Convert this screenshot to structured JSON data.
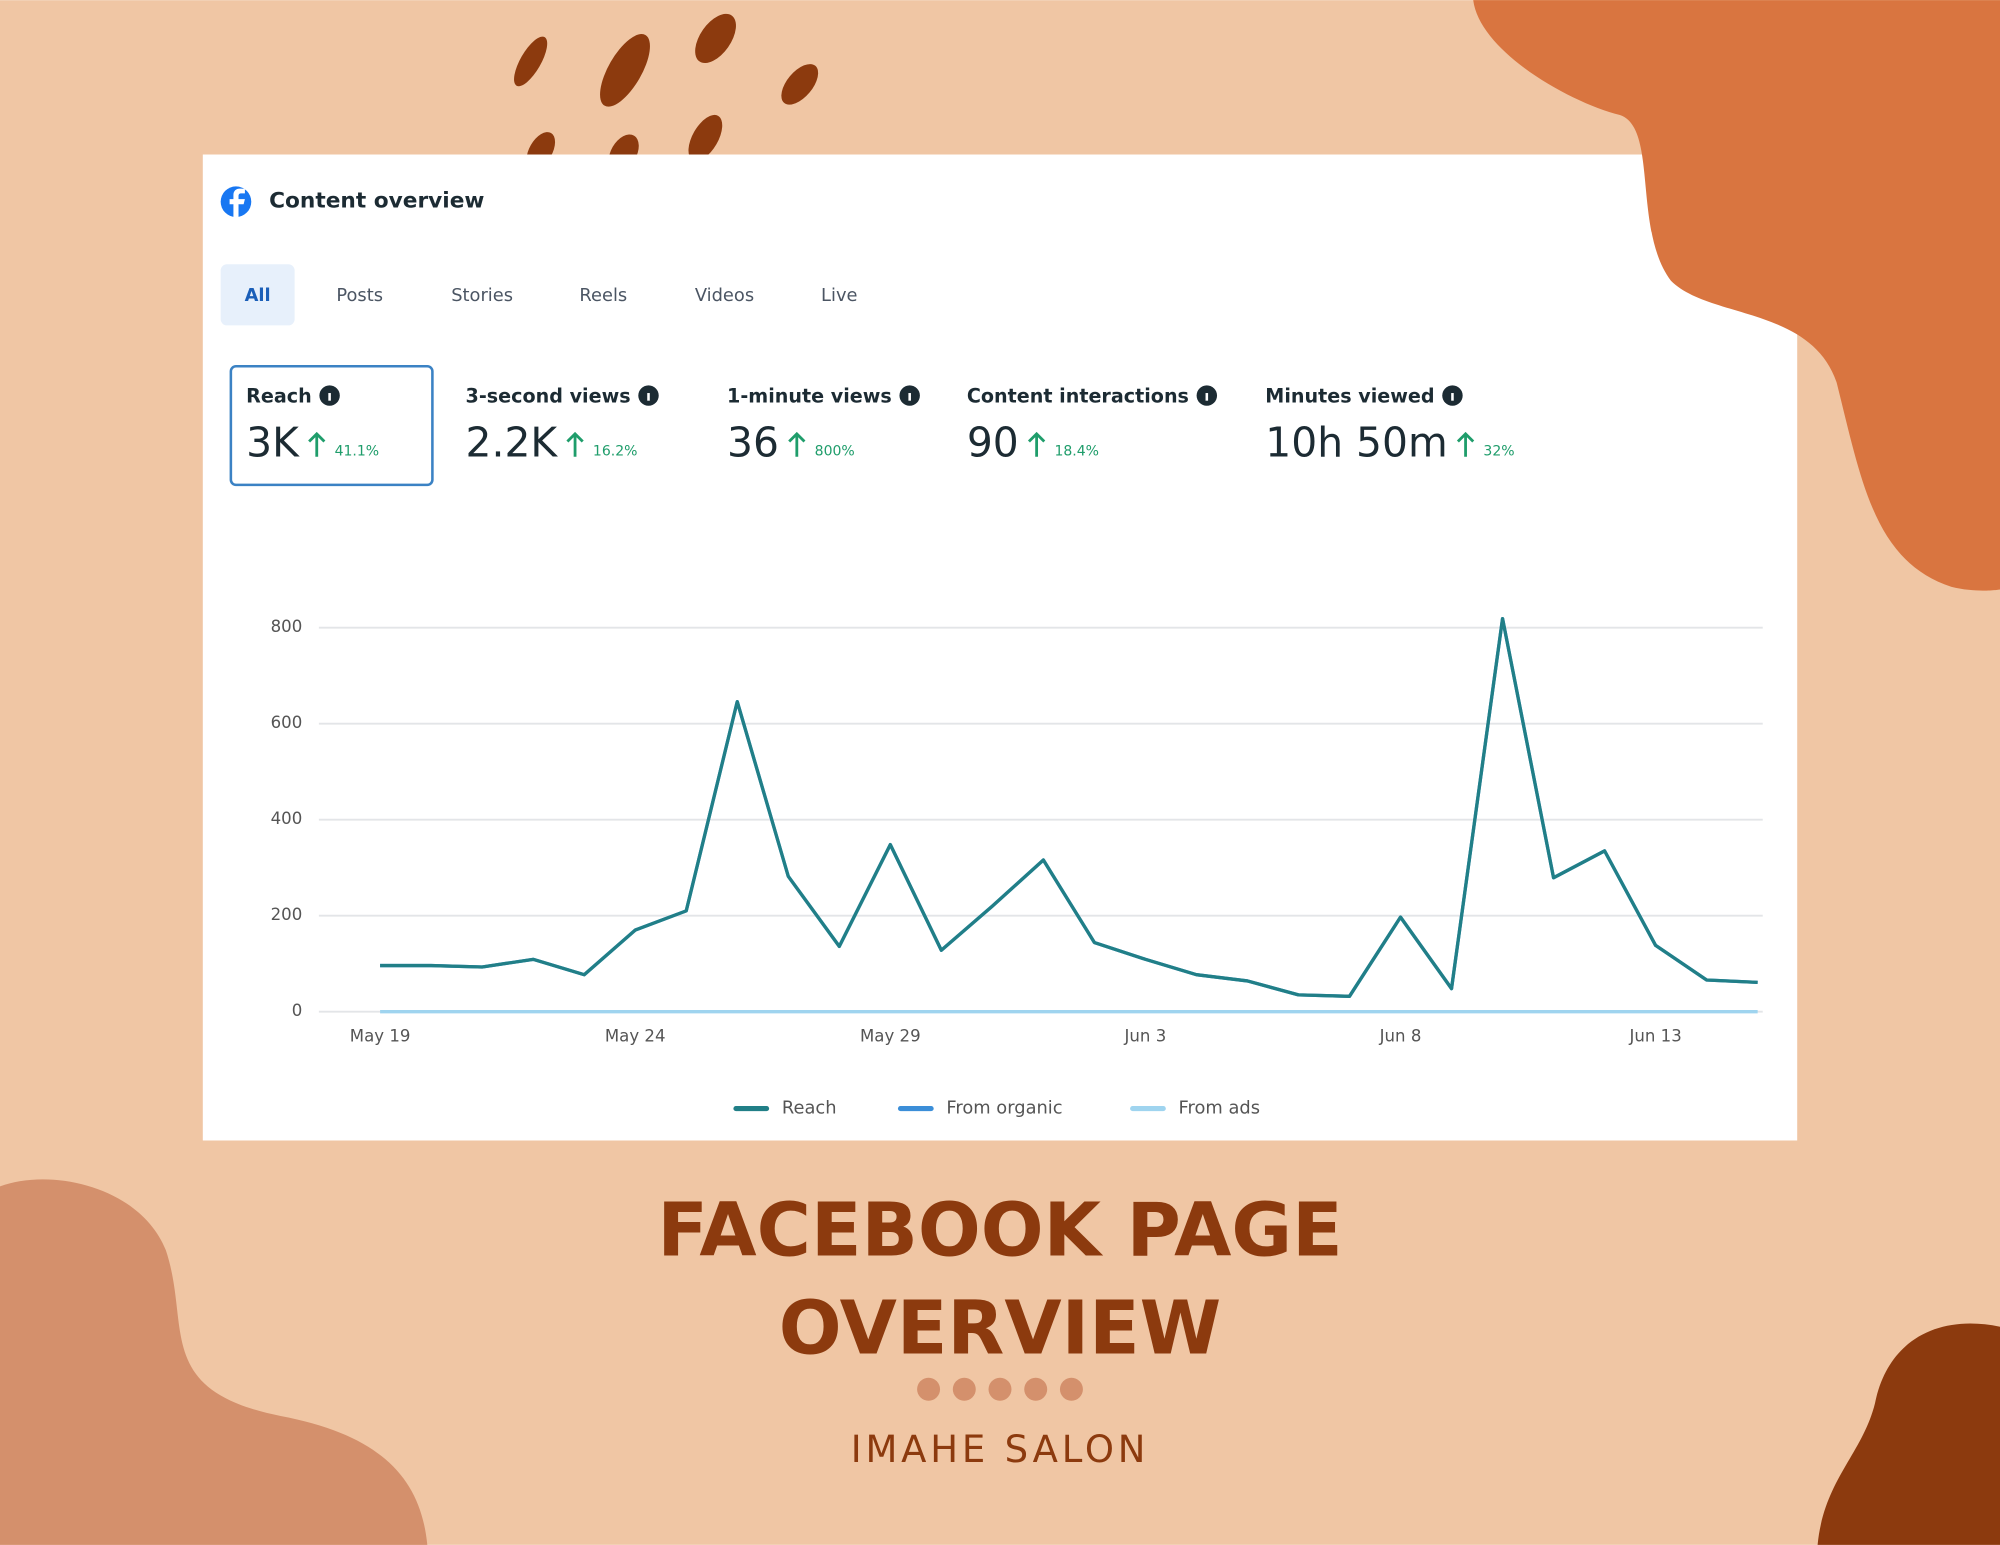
{
  "header": {
    "title": "Content overview"
  },
  "tabs": [
    "All",
    "Posts",
    "Stories",
    "Reels",
    "Videos",
    "Live"
  ],
  "metrics": [
    {
      "label": "Reach",
      "value": "3K",
      "change": "41.1%"
    },
    {
      "label": "3-second views",
      "value": "2.2K",
      "change": "16.2%"
    },
    {
      "label": "1-minute views",
      "value": "36",
      "change": "800%"
    },
    {
      "label": "Content interactions",
      "value": "90",
      "change": "18.4%"
    },
    {
      "label": "Minutes viewed",
      "value": "10h 50m",
      "change": "32%"
    }
  ],
  "chart_data": {
    "type": "line",
    "categories": [
      "May 19",
      null,
      null,
      null,
      null,
      "May 24",
      null,
      null,
      null,
      null,
      "May 29",
      null,
      null,
      null,
      null,
      "Jun 3",
      null,
      null,
      null,
      null,
      "Jun 8",
      null,
      null,
      null,
      null,
      "Jun 13",
      null,
      null
    ],
    "series": [
      {
        "name": "Reach",
        "color": "#217f87",
        "values": [
          96,
          96,
          93,
          109,
          77,
          170,
          210,
          646,
          282,
          136,
          348,
          128,
          220,
          316,
          144,
          109,
          77,
          64,
          35,
          32,
          197,
          48,
          819,
          279,
          335,
          138,
          66,
          61
        ]
      },
      {
        "name": "From organic",
        "color": "#3b8ed8",
        "values": [
          96,
          96,
          93,
          109,
          77,
          170,
          210,
          646,
          282,
          136,
          348,
          128,
          220,
          316,
          144,
          109,
          77,
          64,
          35,
          32,
          197,
          48,
          819,
          279,
          335,
          138,
          66,
          61
        ]
      },
      {
        "name": "From ads",
        "color": "#9fd4ef",
        "values": [
          0,
          0,
          0,
          0,
          0,
          0,
          0,
          0,
          0,
          0,
          0,
          0,
          0,
          0,
          0,
          0,
          0,
          0,
          0,
          0,
          0,
          0,
          0,
          0,
          0,
          0,
          0,
          0
        ]
      }
    ],
    "ylim": [
      0,
      800
    ],
    "yticks": [
      0,
      200,
      400,
      600,
      800
    ],
    "grid": true,
    "legend": "bottom"
  },
  "poster": {
    "title_lines": [
      "FACEBOOK PAGE",
      "OVERVIEW"
    ],
    "subtitle": "IMAHE SALON"
  }
}
